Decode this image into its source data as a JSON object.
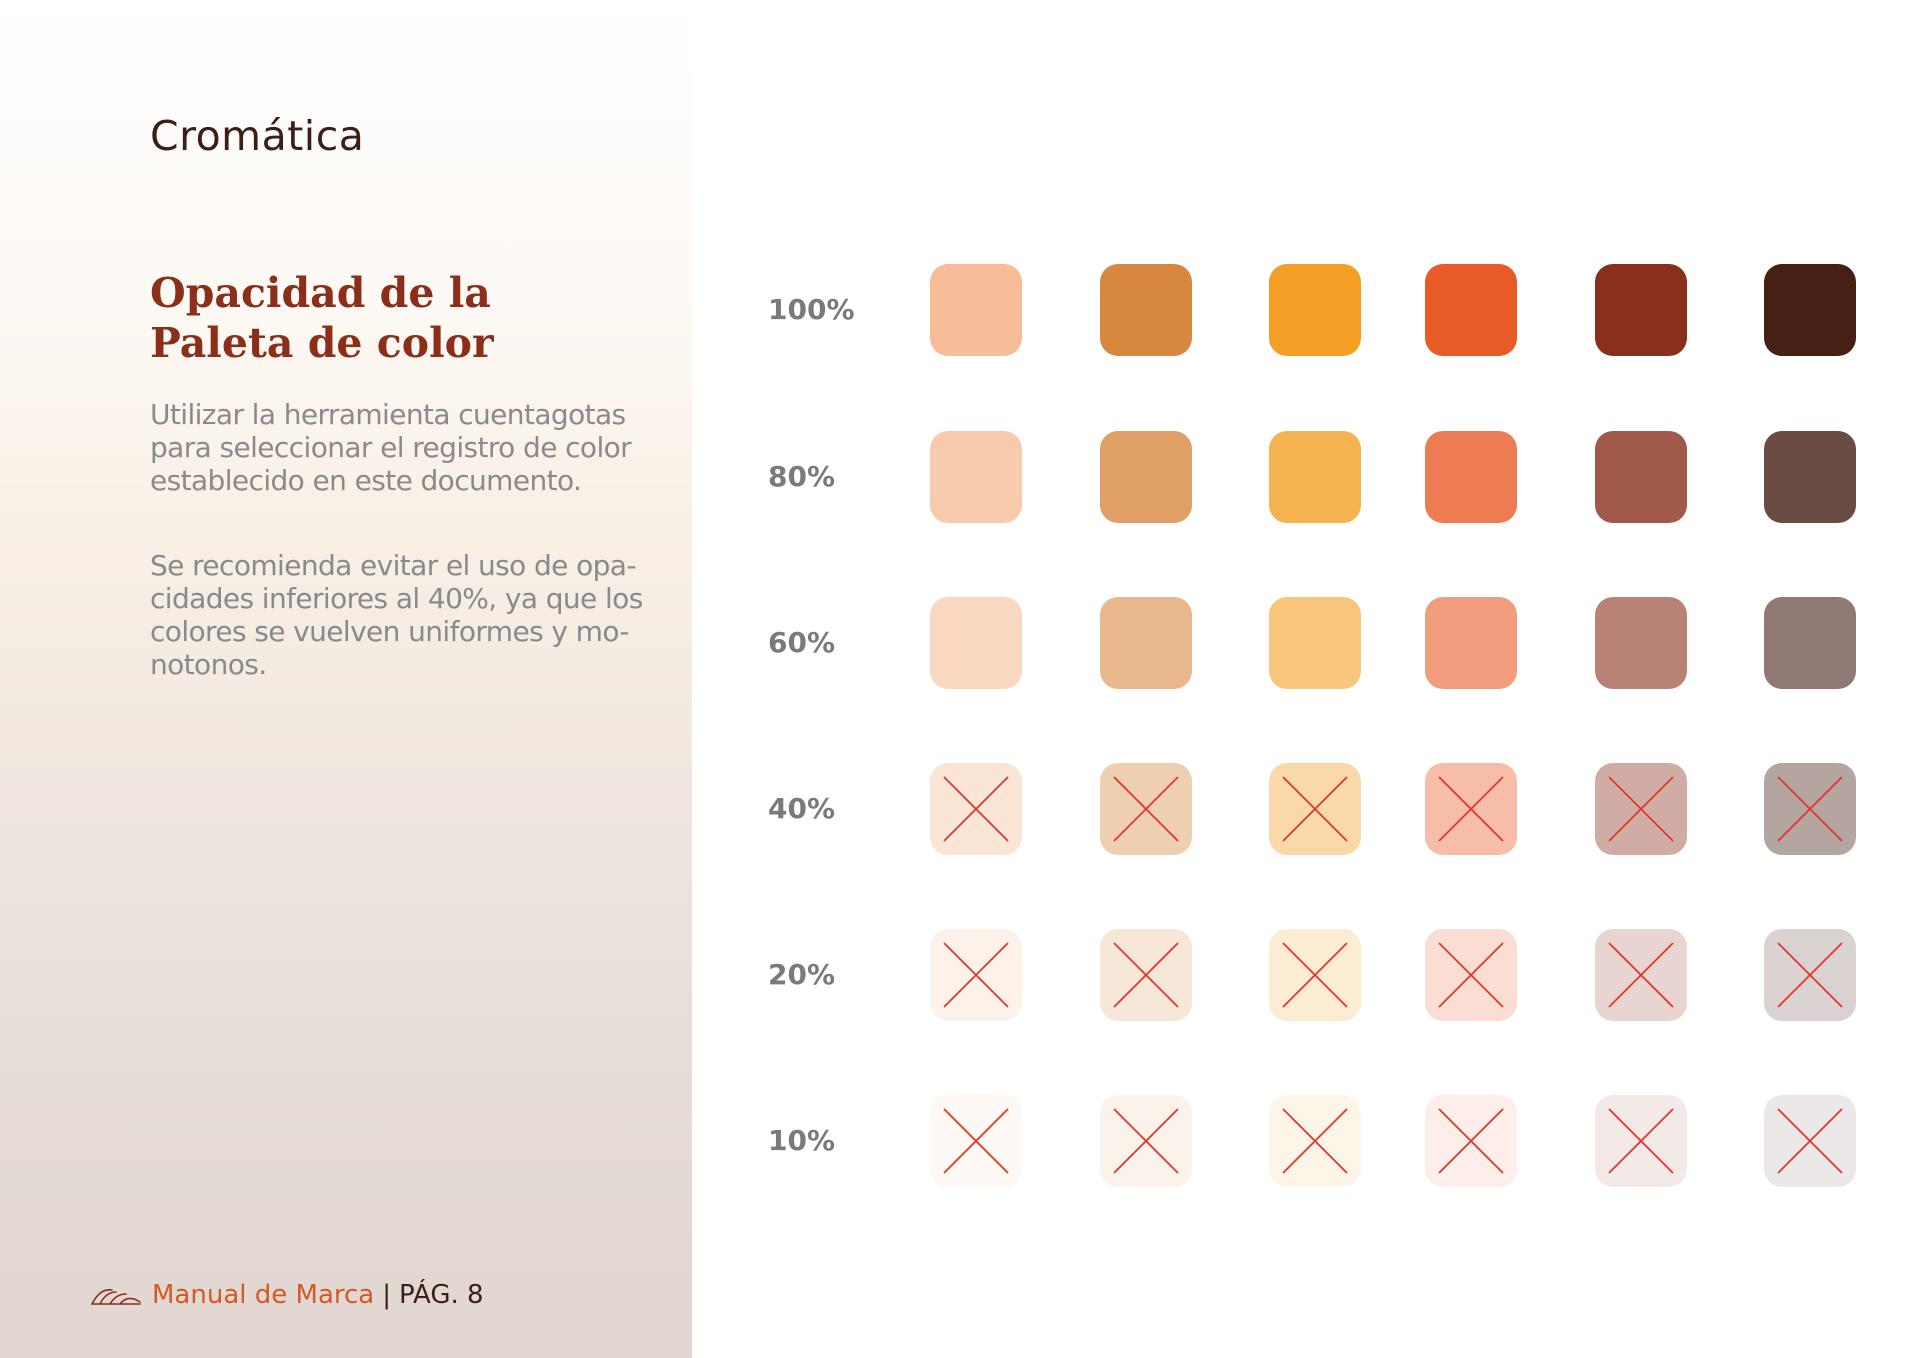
{
  "header": {
    "section_title": "Cromática"
  },
  "content": {
    "heading_lines": [
      "Opacidad de la",
      "Paleta de color"
    ],
    "paragraph1_lines": [
      "Utilizar la herramienta cuentagotas",
      "para seleccionar el registro de color",
      "establecido en este documento."
    ],
    "paragraph2_lines": [
      "Se recomienda evitar el uso de opa-",
      "cidades inferiores al 40%, ya que los",
      "colores se vuelven uniformes y mo-",
      "notonos."
    ]
  },
  "footer": {
    "brand": "Manual de Marca",
    "separator": "|",
    "page": "PÁG. 8",
    "logo_icon": "arch-logo-icon"
  },
  "colors": {
    "text_dark": "#3b1f17",
    "heading": "#8b2e1a",
    "body_text": "#8a8a8a",
    "brand_orange": "#d25a24",
    "cross_mark": "#e0362c"
  },
  "palette": {
    "base_colors": [
      "#f6bd98",
      "#d8873f",
      "#f39f26",
      "#e85b27",
      "#8a2f1b",
      "#461f15"
    ],
    "rows": [
      {
        "label": "100%",
        "opacity": 1.0,
        "rejected": false
      },
      {
        "label": "80%",
        "opacity": 0.8,
        "rejected": false
      },
      {
        "label": "60%",
        "opacity": 0.6,
        "rejected": false
      },
      {
        "label": "40%",
        "opacity": 0.4,
        "rejected": true
      },
      {
        "label": "20%",
        "opacity": 0.2,
        "rejected": true
      },
      {
        "label": "10%",
        "opacity": 0.1,
        "rejected": true
      }
    ]
  }
}
